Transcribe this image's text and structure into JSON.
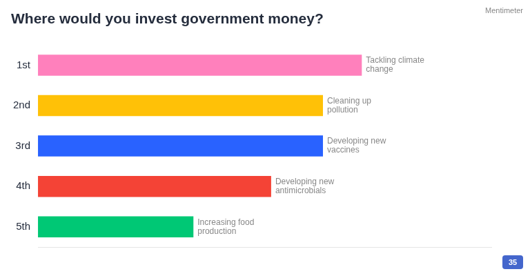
{
  "chart_data": {
    "type": "bar",
    "orientation": "horizontal",
    "title": "Where would you invest government money?",
    "categories": [
      "1st",
      "2nd",
      "3rd",
      "4th",
      "5th"
    ],
    "values": [
      5.0,
      4.4,
      4.4,
      3.6,
      2.4
    ],
    "colors": [
      "#FF80BC",
      "#FFC107",
      "#2962FF",
      "#F44336",
      "#00C875"
    ],
    "xlim": [
      0,
      7.0
    ],
    "grid": false,
    "tick_labels": "y",
    "annotations": [
      {
        "text": "Tackling climate\nchange",
        "category": "1st"
      },
      {
        "text": "Cleaning up\npollution",
        "category": "2nd"
      },
      {
        "text": "Developing new\nvaccines",
        "category": "3rd"
      },
      {
        "text": "Developing new\nantimicrobials",
        "category": "4th"
      },
      {
        "text": "Increasing food\nproduction",
        "category": "5th"
      },
      {
        "text": "Mentimeter"
      },
      {
        "text": "35"
      }
    ]
  }
}
